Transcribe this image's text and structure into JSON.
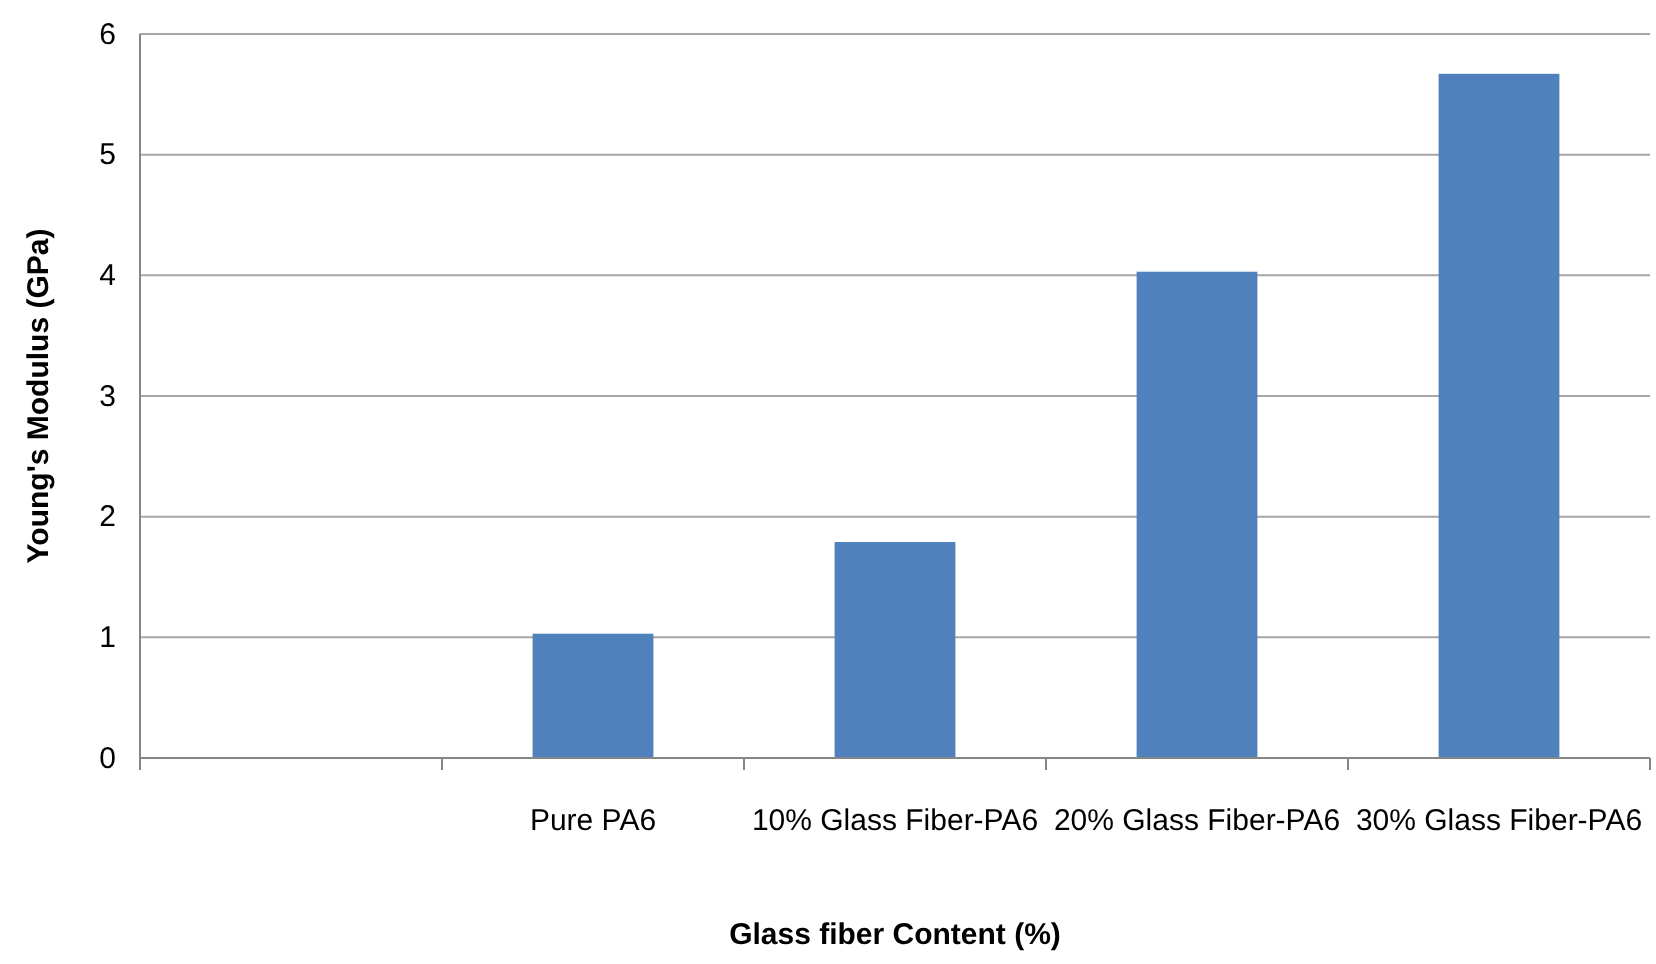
{
  "chart_data": {
    "type": "bar",
    "xlabel": "Glass fiber Content (%)",
    "ylabel": "Young's Modulus (GPa)",
    "categories": [
      null,
      "Pure PA6",
      "10% Glass Fiber-PA6",
      "20% Glass Fiber-PA6",
      "30% Glass Fiber-PA6"
    ],
    "values": [
      null,
      1.03,
      1.79,
      4.03,
      5.67
    ],
    "color": "#4f81bd",
    "ylim": [
      0,
      6
    ],
    "yticks": [
      0,
      1,
      2,
      3,
      4,
      5,
      6
    ],
    "grid": "y"
  }
}
